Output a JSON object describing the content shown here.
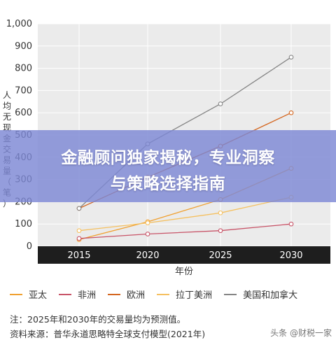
{
  "chart_data": {
    "type": "line",
    "title": "",
    "xlabel": "年份",
    "ylabel": "人均无现金交易量（笔）",
    "x": [
      "2015",
      "2020",
      "2025",
      "2030"
    ],
    "ylim": [
      0,
      1000
    ],
    "yticks": [
      "0",
      "100",
      "200",
      "300",
      "400",
      "500",
      "600",
      "700",
      "800",
      "900",
      "1,000"
    ],
    "grid": true,
    "legend_position": "bottom",
    "series": [
      {
        "name": "亚太",
        "color": "#f0a030",
        "values": [
          30,
          110,
          210,
          350
        ]
      },
      {
        "name": "非洲",
        "color": "#c85468",
        "values": [
          35,
          55,
          70,
          100
        ]
      },
      {
        "name": "欧洲",
        "color": "#d4661f",
        "values": [
          170,
          310,
          450,
          600
        ]
      },
      {
        "name": "拉丁美洲",
        "color": "#f5c060",
        "values": [
          70,
          105,
          150,
          220
        ]
      },
      {
        "name": "美国和加拿大",
        "color": "#858585",
        "values": [
          170,
          460,
          640,
          850
        ]
      }
    ]
  },
  "banner": {
    "line1": "金融顾问独家揭秘，专业洞察",
    "line2": "与策略选择指南"
  },
  "note": "注：2025年和2030年的交易量均为预测值。",
  "source": "资料来源：普华永道思略特全球支付模型(2021年)",
  "watermark": "头条 @财税一家"
}
